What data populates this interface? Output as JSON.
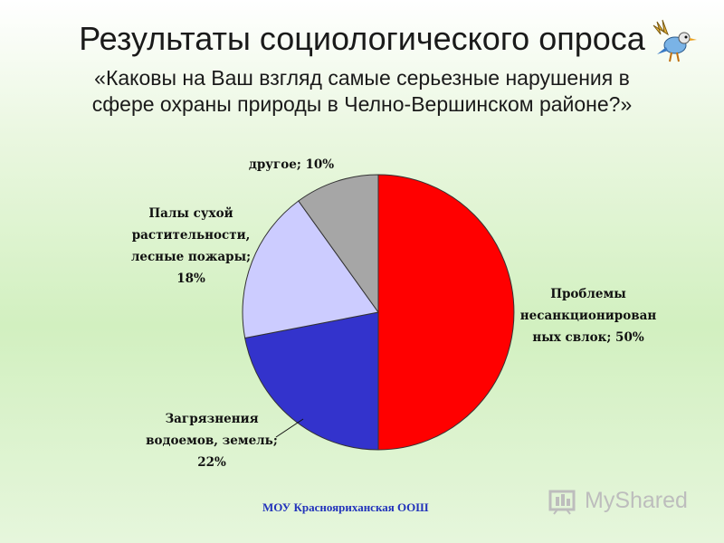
{
  "header": {
    "title": "Результаты социологического опроса",
    "subtitle_line1": "«Каковы на Ваш взгляд самые серьезные нарушения в",
    "subtitle_line2": "сфере охраны природы в Челно-Вершинском районе?»"
  },
  "chart_data": {
    "type": "pie",
    "title": "",
    "slices": [
      {
        "label_lines": [
          "Проблемы",
          "несанкционирован",
          "ных свлок; 50%"
        ],
        "value": 50,
        "color": "#ff0000"
      },
      {
        "label_lines": [
          "Загрязнения",
          "водоемов, земель;",
          "22%"
        ],
        "value": 22,
        "color": "#3333cc"
      },
      {
        "label_lines": [
          "Палы сухой",
          "растительности,",
          "лесные пожары;",
          "18%"
        ],
        "value": 18,
        "color": "#ccccff"
      },
      {
        "label_lines": [
          "другое; 10%"
        ],
        "value": 10,
        "color": "#a6a6a6"
      }
    ]
  },
  "footer": {
    "school": "МОУ Краснояриханская ООШ",
    "brand": "MyShared"
  },
  "icons": [
    "bird-icon",
    "myshared-logo-icon"
  ]
}
